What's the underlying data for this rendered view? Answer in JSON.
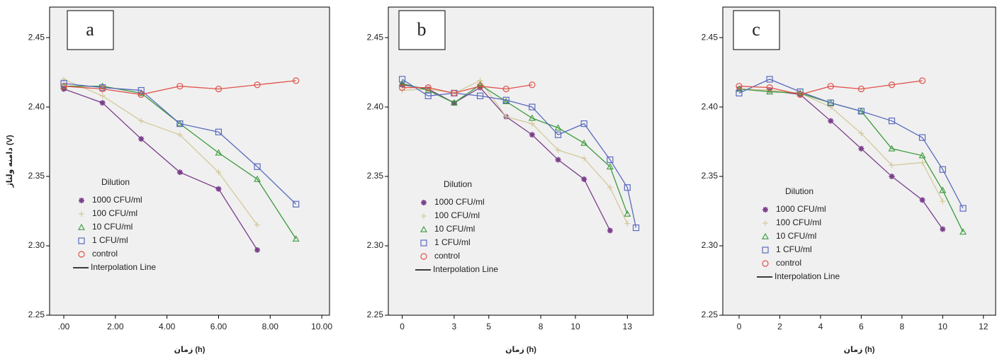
{
  "chart_data": [
    {
      "type": "line",
      "panel_label": "a",
      "ylabel": "دامنه ولتاژ (V)",
      "xlabel": "زمان (h)",
      "legend_title": "Dilution",
      "interpolation_label": "Interpolation Line",
      "x": [
        0,
        1.5,
        3,
        4.5,
        6,
        7.5,
        9
      ],
      "xlim": [
        -0.55,
        10.3
      ],
      "xticks": [
        {
          "value": 0,
          "label": ".00"
        },
        {
          "value": 2,
          "label": "2.00"
        },
        {
          "value": 4,
          "label": "4.00"
        },
        {
          "value": 6,
          "label": "6.00"
        },
        {
          "value": 8,
          "label": "8.00"
        },
        {
          "value": 10,
          "label": "10.00"
        }
      ],
      "ylim": [
        2.25,
        2.472
      ],
      "yticks": [
        2.25,
        {
          "value": 2.3,
          "label": "2.30"
        },
        2.35,
        {
          "value": 2.4,
          "label": "2.40"
        },
        2.45
      ],
      "series": [
        {
          "name": "1000 CFU/ml",
          "color": "#7b3f8c",
          "marker": "asterisk",
          "values": [
            2.413,
            2.403,
            2.377,
            2.353,
            2.341,
            2.297,
            null
          ]
        },
        {
          "name": "100 CFU/ml",
          "color": "#d4c99a",
          "marker": "plus",
          "values": [
            2.42,
            2.408,
            2.39,
            2.38,
            2.353,
            2.315,
            null
          ]
        },
        {
          "name": "10 CFU/ml",
          "color": "#3a9a3a",
          "marker": "triangle",
          "values": [
            2.415,
            2.415,
            2.41,
            2.388,
            2.367,
            2.348,
            2.305
          ]
        },
        {
          "name": "1 CFU/ml",
          "color": "#5a6bbf",
          "marker": "square",
          "values": [
            2.417,
            2.414,
            2.412,
            2.388,
            2.382,
            2.357,
            2.33
          ]
        },
        {
          "name": "control",
          "color": "#e0524a",
          "marker": "circle",
          "values": [
            2.415,
            2.413,
            2.409,
            2.415,
            2.413,
            2.416,
            2.419
          ]
        }
      ]
    },
    {
      "type": "line",
      "panel_label": "b",
      "xlabel": "زمان (h)",
      "legend_title": "Dilution",
      "interpolation_label": "Interpolation Line",
      "x": [
        0,
        1.5,
        3,
        4.5,
        6,
        7.5,
        9,
        10.5,
        12,
        13,
        13.5
      ],
      "xlim": [
        -0.8,
        14.5
      ],
      "xticks": [
        0,
        3,
        5,
        8,
        10,
        13
      ],
      "ylim": [
        2.25,
        2.472
      ],
      "yticks": [
        2.25,
        {
          "value": 2.3,
          "label": "2.30"
        },
        2.35,
        {
          "value": 2.4,
          "label": "2.40"
        },
        2.45
      ],
      "series": [
        {
          "name": "1000 CFU/ml",
          "color": "#7b3f8c",
          "marker": "asterisk",
          "values": [
            2.416,
            2.413,
            2.403,
            2.414,
            2.393,
            2.38,
            2.362,
            2.348,
            2.311,
            null,
            null
          ]
        },
        {
          "name": "100 CFU/ml",
          "color": "#d4c99a",
          "marker": "plus",
          "values": [
            2.412,
            2.413,
            2.41,
            2.419,
            2.393,
            2.388,
            2.369,
            2.363,
            2.342,
            2.316,
            null
          ]
        },
        {
          "name": "10 CFU/ml",
          "color": "#3a9a3a",
          "marker": "triangle",
          "values": [
            2.417,
            2.412,
            2.403,
            2.416,
            2.404,
            2.392,
            2.385,
            2.374,
            2.357,
            2.323,
            null
          ]
        },
        {
          "name": "1 CFU/ml",
          "color": "#5a6bbf",
          "marker": "square",
          "values": [
            2.42,
            2.408,
            2.41,
            2.408,
            2.405,
            2.4,
            2.38,
            2.388,
            2.362,
            2.342,
            2.313
          ]
        },
        {
          "name": "control",
          "color": "#e0524a",
          "marker": "circle",
          "values": [
            2.414,
            2.414,
            2.41,
            2.415,
            2.413,
            2.416,
            null,
            null,
            null,
            null,
            null
          ]
        }
      ]
    },
    {
      "type": "line",
      "panel_label": "c",
      "xlabel": "زمان (h)",
      "legend_title": "Dilution",
      "interpolation_label": "Interpolation Line",
      "x": [
        0,
        1.5,
        3,
        4.5,
        6,
        7.5,
        9,
        10,
        11
      ],
      "xlim": [
        -0.8,
        12.6
      ],
      "xticks": [
        0,
        2,
        4,
        6,
        8,
        10,
        12
      ],
      "ylim": [
        2.25,
        2.472
      ],
      "yticks": [
        2.25,
        {
          "value": 2.3,
          "label": "2.30"
        },
        2.35,
        {
          "value": 2.4,
          "label": "2.40"
        },
        2.45
      ],
      "series": [
        {
          "name": "1000 CFU/ml",
          "color": "#7b3f8c",
          "marker": "asterisk",
          "values": [
            2.413,
            2.412,
            2.409,
            2.39,
            2.37,
            2.35,
            2.333,
            2.312,
            null
          ]
        },
        {
          "name": "100 CFU/ml",
          "color": "#d4c99a",
          "marker": "plus",
          "values": [
            2.413,
            2.412,
            2.41,
            2.4,
            2.381,
            2.358,
            2.36,
            2.332,
            null
          ]
        },
        {
          "name": "10 CFU/ml",
          "color": "#3a9a3a",
          "marker": "triangle",
          "values": [
            2.413,
            2.411,
            2.41,
            2.403,
            2.397,
            2.37,
            2.365,
            2.34,
            2.31
          ]
        },
        {
          "name": "1 CFU/ml",
          "color": "#5a6bbf",
          "marker": "square",
          "values": [
            2.41,
            2.42,
            2.411,
            2.403,
            2.397,
            2.39,
            2.378,
            2.355,
            2.327
          ]
        },
        {
          "name": "control",
          "color": "#e0524a",
          "marker": "circle",
          "values": [
            2.415,
            2.414,
            2.409,
            2.415,
            2.413,
            2.416,
            2.419,
            null,
            null
          ]
        }
      ]
    }
  ]
}
